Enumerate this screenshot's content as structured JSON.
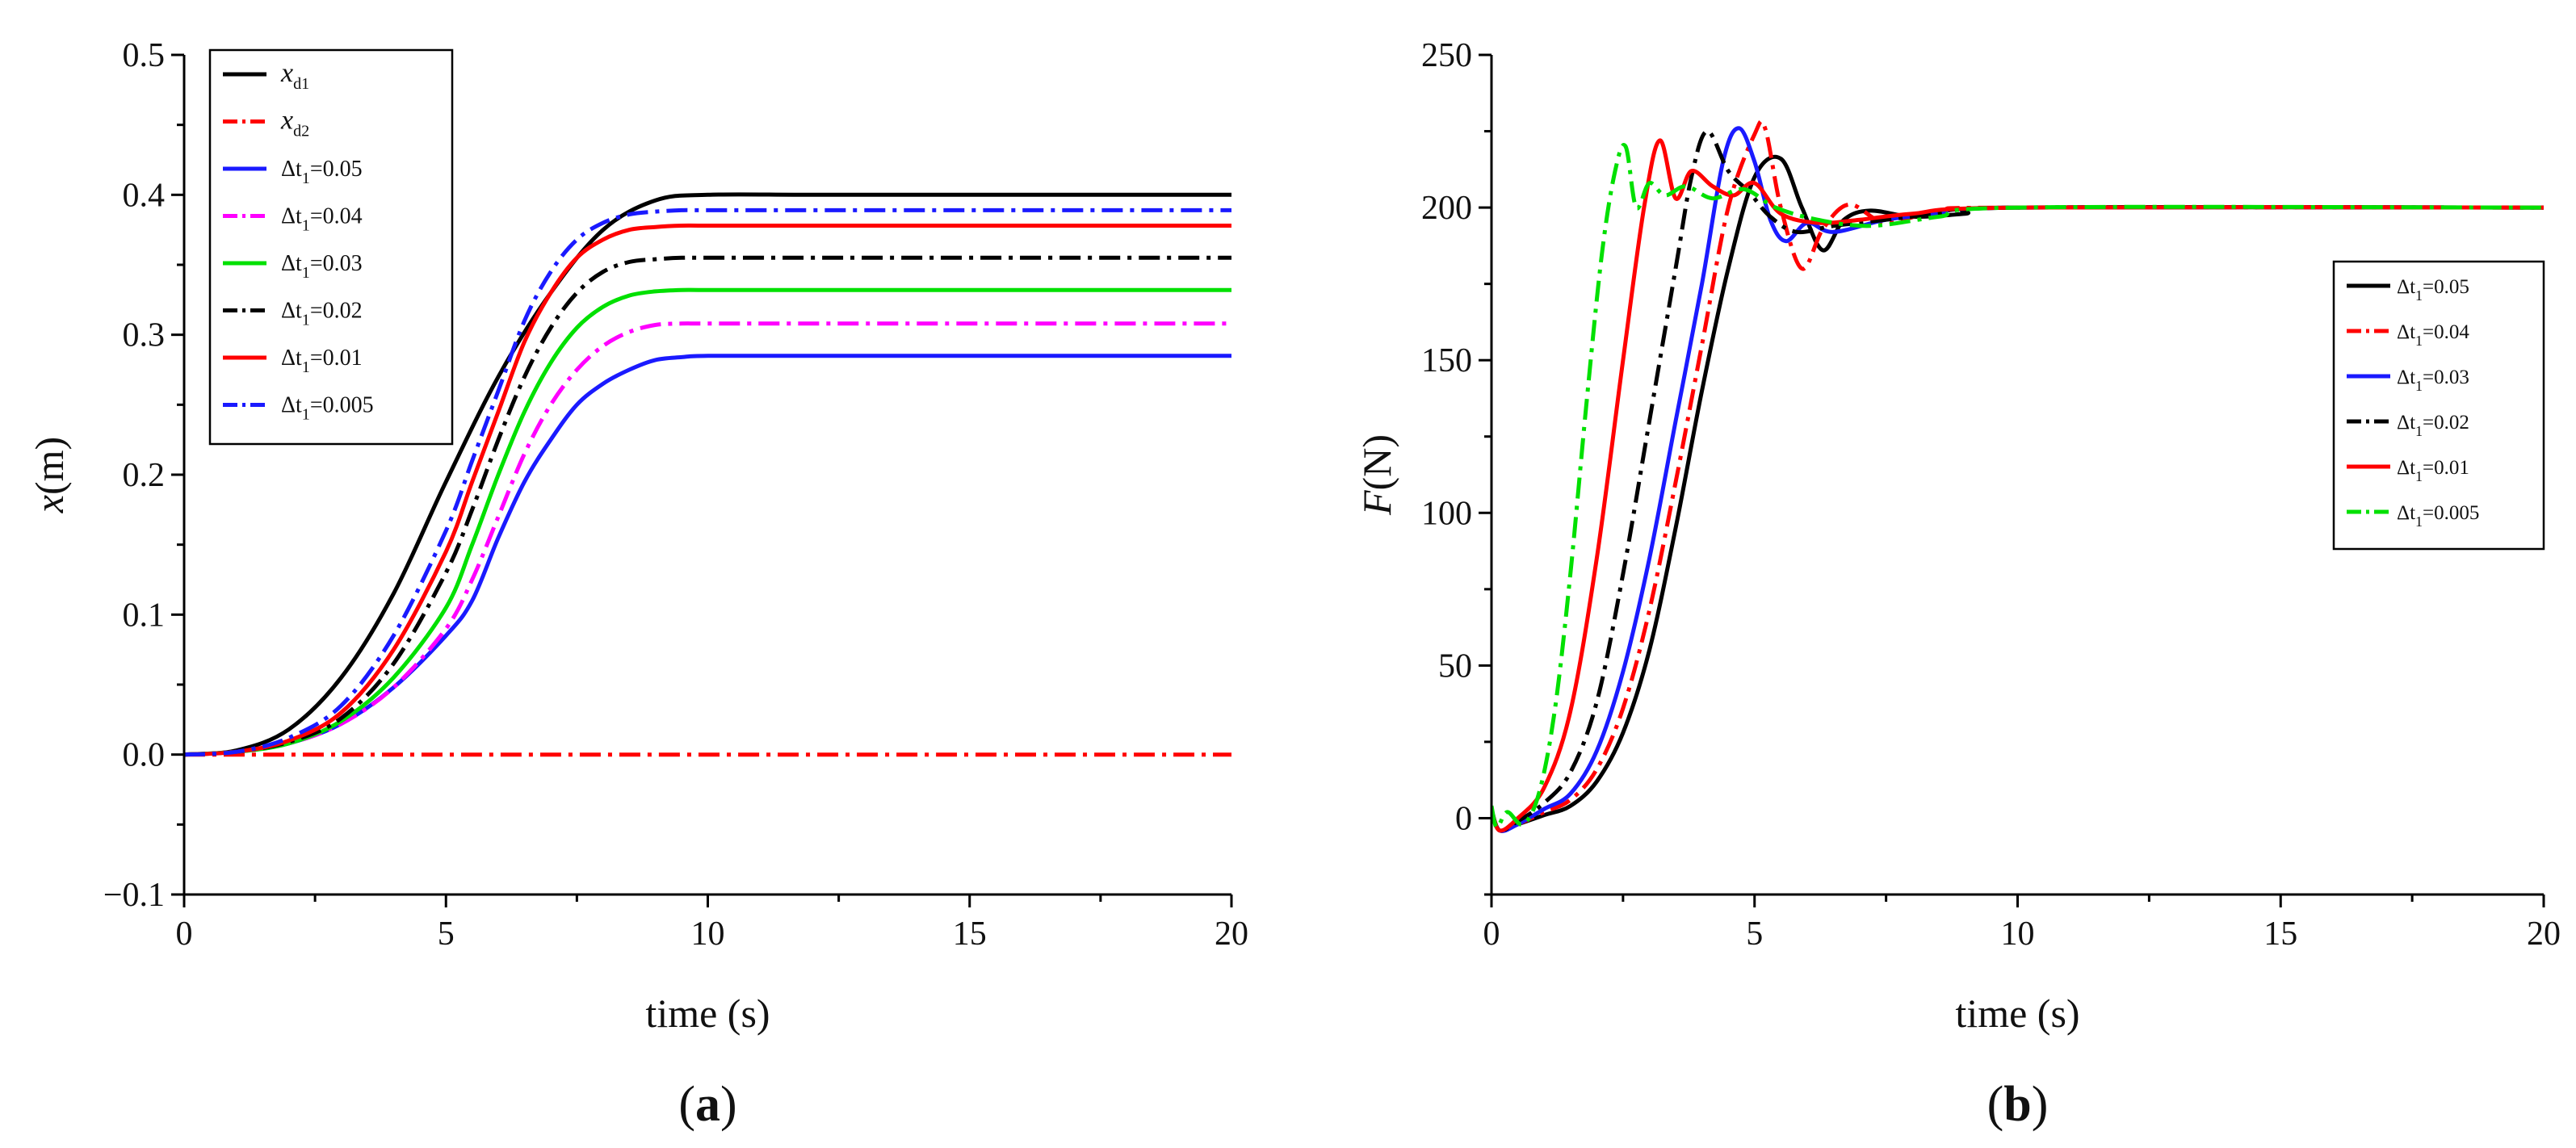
{
  "colors": {
    "black": "#000000",
    "red": "#ff0000",
    "blue": "#1a1aff",
    "magenta": "#ff00ff",
    "green": "#00e000"
  },
  "chart_data": [
    {
      "id": "a",
      "type": "line",
      "panel_label": "a",
      "xlabel": "time (s)",
      "ylabel_var": "x",
      "ylabel_unit": "(m)",
      "xlim": [
        0,
        20
      ],
      "ylim": [
        -0.1,
        0.5
      ],
      "xticks": [
        0,
        5,
        10,
        15,
        20
      ],
      "xtick_labels": [
        "0",
        "5",
        "10",
        "15",
        "20"
      ],
      "yticks": [
        -0.1,
        0.0,
        0.1,
        0.2,
        0.3,
        0.4,
        0.5
      ],
      "ytick_labels": [
        "−0.1",
        "0.0",
        "0.1",
        "0.2",
        "0.3",
        "0.4",
        "0.5"
      ],
      "grid": false,
      "legend_placement": "top-left",
      "series": [
        {
          "name": "x_d1",
          "legend_main": "x",
          "legend_sub": "d1",
          "italic_main": true,
          "color": "#000000",
          "dash": "solid",
          "x": [
            0,
            1,
            2,
            3,
            4,
            5,
            6,
            7,
            8,
            9,
            10,
            12,
            15,
            20
          ],
          "values": [
            0.0,
            0.003,
            0.018,
            0.055,
            0.115,
            0.195,
            0.27,
            0.33,
            0.375,
            0.396,
            0.4,
            0.4,
            0.4,
            0.4
          ]
        },
        {
          "name": "x_d2",
          "legend_main": "x",
          "legend_sub": "d2",
          "italic_main": true,
          "color": "#ff0000",
          "dash": "dashdot",
          "x": [
            0,
            20
          ],
          "values": [
            0.0,
            0.0
          ]
        },
        {
          "name": "Δt1=0.05",
          "legend_main": "Δt",
          "legend_sub": "1",
          "legend_tail": "=0.05",
          "color": "#1a1aff",
          "dash": "solid",
          "x": [
            0,
            1,
            2,
            3,
            4,
            5,
            5.5,
            6,
            6.5,
            7,
            7.5,
            8,
            8.5,
            9,
            9.5,
            10,
            12,
            15,
            20
          ],
          "values": [
            0.0,
            0.002,
            0.008,
            0.022,
            0.048,
            0.085,
            0.11,
            0.155,
            0.195,
            0.225,
            0.25,
            0.265,
            0.275,
            0.282,
            0.284,
            0.285,
            0.285,
            0.285,
            0.285
          ]
        },
        {
          "name": "Δt1=0.04",
          "legend_main": "Δt",
          "legend_sub": "1",
          "legend_tail": "=0.04",
          "color": "#ff00ff",
          "dash": "dashdot",
          "x": [
            0,
            1,
            2,
            3,
            4,
            5,
            5.5,
            6,
            6.5,
            7,
            7.5,
            8,
            8.5,
            9,
            9.5,
            10,
            12,
            15,
            20
          ],
          "values": [
            0.0,
            0.002,
            0.008,
            0.022,
            0.048,
            0.09,
            0.125,
            0.17,
            0.215,
            0.25,
            0.275,
            0.292,
            0.302,
            0.307,
            0.308,
            0.308,
            0.308,
            0.308,
            0.308
          ]
        },
        {
          "name": "Δt1=0.03",
          "legend_main": "Δt",
          "legend_sub": "1",
          "legend_tail": "=0.03",
          "color": "#00e000",
          "dash": "solid",
          "x": [
            0,
            1,
            2,
            3,
            4,
            5,
            5.5,
            6,
            6.5,
            7,
            7.5,
            8,
            8.5,
            9,
            9.5,
            10,
            12,
            15,
            20
          ],
          "values": [
            0.0,
            0.002,
            0.008,
            0.024,
            0.055,
            0.105,
            0.15,
            0.2,
            0.245,
            0.28,
            0.305,
            0.32,
            0.328,
            0.331,
            0.332,
            0.332,
            0.332,
            0.332,
            0.332
          ]
        },
        {
          "name": "Δt1=0.02",
          "legend_main": "Δt",
          "legend_sub": "1",
          "legend_tail": "=0.02",
          "color": "#000000",
          "dash": "dashdot",
          "x": [
            0,
            1,
            2,
            3,
            4,
            5,
            5.5,
            6,
            6.5,
            7,
            7.5,
            8,
            8.5,
            9,
            9.5,
            10,
            12,
            15,
            20
          ],
          "values": [
            0.0,
            0.002,
            0.009,
            0.026,
            0.065,
            0.13,
            0.175,
            0.225,
            0.27,
            0.305,
            0.33,
            0.345,
            0.352,
            0.354,
            0.355,
            0.355,
            0.355,
            0.355,
            0.355
          ]
        },
        {
          "name": "Δt1=0.01",
          "legend_main": "Δt",
          "legend_sub": "1",
          "legend_tail": "=0.01",
          "color": "#ff0000",
          "dash": "solid",
          "x": [
            0,
            1,
            2,
            3,
            4,
            5,
            5.5,
            6,
            6.5,
            7,
            7.5,
            8,
            8.5,
            9,
            9.5,
            10,
            12,
            15,
            20
          ],
          "values": [
            0.0,
            0.002,
            0.01,
            0.03,
            0.075,
            0.145,
            0.195,
            0.245,
            0.295,
            0.33,
            0.355,
            0.368,
            0.375,
            0.377,
            0.378,
            0.378,
            0.378,
            0.378,
            0.378
          ]
        },
        {
          "name": "Δt1=0.005",
          "legend_main": "Δt",
          "legend_sub": "1",
          "legend_tail": "=0.005",
          "color": "#1a1aff",
          "dash": "dashdot",
          "x": [
            0,
            1,
            2,
            3,
            4,
            5,
            5.5,
            6,
            6.5,
            7,
            7.5,
            8,
            8.5,
            9,
            9.5,
            10,
            12,
            15,
            20
          ],
          "values": [
            0.0,
            0.002,
            0.012,
            0.035,
            0.085,
            0.16,
            0.21,
            0.26,
            0.31,
            0.345,
            0.368,
            0.38,
            0.386,
            0.388,
            0.389,
            0.389,
            0.389,
            0.389,
            0.389
          ]
        }
      ]
    },
    {
      "id": "b",
      "type": "line",
      "panel_label": "b",
      "xlabel": "time (s)",
      "ylabel_var": "F",
      "ylabel_unit": "(N)",
      "xlim": [
        0,
        20
      ],
      "ylim": [
        -25,
        250
      ],
      "xticks": [
        0,
        5,
        10,
        15,
        20
      ],
      "xtick_labels": [
        "0",
        "5",
        "10",
        "15",
        "20"
      ],
      "yticks": [
        0,
        50,
        100,
        150,
        200,
        250
      ],
      "ytick_labels": [
        "0",
        "50",
        "100",
        "150",
        "200",
        "250"
      ],
      "grid": false,
      "legend_placement": "right",
      "series": [
        {
          "name": "Δt1=0.05",
          "legend_main": "Δt",
          "legend_sub": "1",
          "legend_tail": "=0.05",
          "color": "#000000",
          "dash": "solid",
          "x": [
            0,
            0.15,
            0.5,
            1,
            1.5,
            2,
            2.5,
            3,
            3.5,
            4,
            4.5,
            5,
            5.5,
            5.9,
            6.3,
            6.7,
            7.2,
            8,
            9,
            10,
            20
          ],
          "values": [
            3,
            -4,
            -2,
            1,
            4,
            12,
            28,
            55,
            95,
            140,
            180,
            210,
            216,
            200,
            186,
            196,
            199,
            197,
            198,
            200,
            200
          ]
        },
        {
          "name": "Δt1=0.04",
          "legend_main": "Δt",
          "legend_sub": "1",
          "legend_tail": "=0.04",
          "color": "#ff0000",
          "dash": "dashdot",
          "x": [
            0,
            0.15,
            0.5,
            1,
            1.5,
            2,
            2.5,
            3,
            3.5,
            4,
            4.5,
            5,
            5.2,
            5.5,
            5.9,
            6.3,
            6.8,
            7.5,
            8.5,
            10,
            20
          ],
          "values": [
            3,
            -4,
            -2,
            2,
            6,
            16,
            36,
            68,
            110,
            155,
            200,
            224,
            226,
            200,
            180,
            193,
            201,
            195,
            199,
            200,
            200
          ]
        },
        {
          "name": "Δt1=0.03",
          "legend_main": "Δt",
          "legend_sub": "1",
          "legend_tail": "=0.03",
          "color": "#1a1aff",
          "dash": "solid",
          "x": [
            0,
            0.15,
            0.5,
            1,
            1.5,
            2,
            2.5,
            3,
            3.5,
            4,
            4.4,
            4.7,
            5,
            5.3,
            5.6,
            6,
            6.5,
            7.5,
            8.5,
            10,
            20
          ],
          "values": [
            3,
            -4,
            -2,
            3,
            8,
            22,
            48,
            85,
            130,
            175,
            215,
            226,
            215,
            196,
            189,
            195,
            192,
            196,
            198,
            200,
            200
          ]
        },
        {
          "name": "Δt1=0.02",
          "legend_main": "Δt",
          "legend_sub": "1",
          "legend_tail": "=0.02",
          "color": "#000000",
          "dash": "dashdot",
          "x": [
            0,
            0.15,
            0.5,
            1,
            1.5,
            2,
            2.5,
            3,
            3.5,
            3.8,
            4.1,
            4.5,
            4.9,
            5.3,
            5.8,
            6.5,
            7.5,
            8.5,
            10,
            20
          ],
          "values": [
            3,
            -4,
            -1,
            5,
            15,
            38,
            80,
            130,
            180,
            210,
            225,
            212,
            205,
            197,
            192,
            194,
            196,
            198,
            200,
            200
          ]
        },
        {
          "name": "Δt1=0.01",
          "legend_main": "Δt",
          "legend_sub": "1",
          "legend_tail": "=0.01",
          "color": "#ff0000",
          "dash": "solid",
          "x": [
            0,
            0.15,
            0.5,
            1,
            1.5,
            2,
            2.5,
            2.9,
            3.2,
            3.5,
            3.8,
            4.2,
            4.6,
            5,
            5.5,
            6.2,
            7,
            8,
            10,
            20
          ],
          "values": [
            3,
            -4,
            0,
            10,
            35,
            85,
            150,
            200,
            222,
            203,
            212,
            207,
            204,
            208,
            198,
            195,
            196,
            198,
            200,
            200
          ]
        },
        {
          "name": "Δt1=0.005",
          "legend_main": "Δt",
          "legend_sub": "1",
          "legend_tail": "=0.005",
          "color": "#00e000",
          "dash": "dashdot",
          "x": [
            0,
            0.1,
            0.3,
            0.6,
            0.9,
            1.2,
            1.5,
            1.8,
            2.1,
            2.35,
            2.55,
            2.75,
            3,
            3.3,
            3.7,
            4.2,
            4.8,
            5.4,
            6.2,
            7.2,
            8.5,
            10,
            20
          ],
          "values": [
            4,
            -3,
            2,
            -2,
            8,
            35,
            80,
            135,
            185,
            212,
            220,
            200,
            208,
            204,
            207,
            203,
            206,
            200,
            196,
            194,
            197,
            200,
            200
          ]
        }
      ]
    }
  ]
}
